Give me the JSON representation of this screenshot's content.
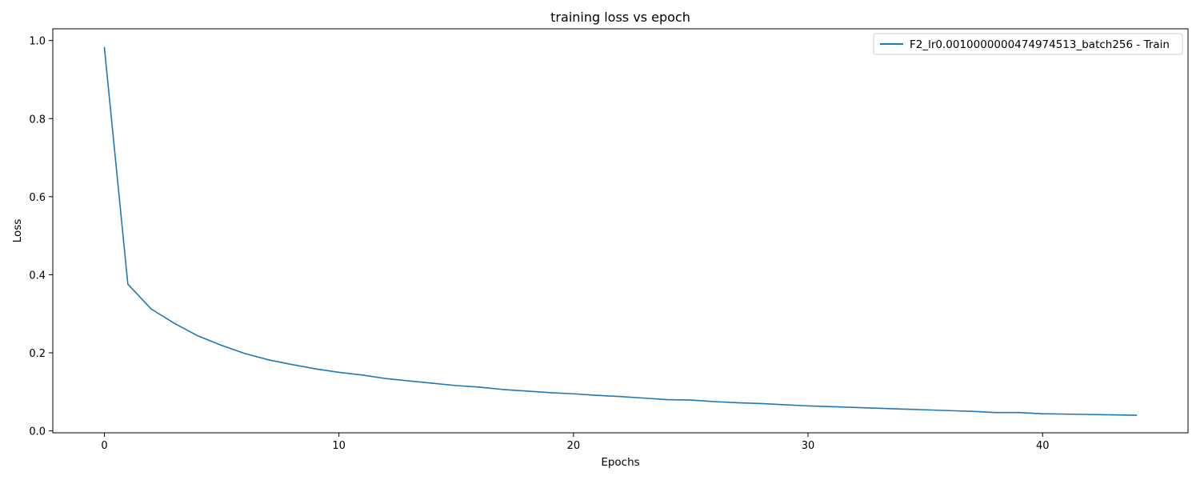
{
  "chart_data": {
    "type": "line",
    "title": "training loss vs epoch",
    "xlabel": "Epochs",
    "ylabel": "Loss",
    "xlim": [
      -2.2,
      46.2
    ],
    "ylim": [
      -0.0049,
      1.0301
    ],
    "xticks": [
      0,
      10,
      20,
      30,
      40
    ],
    "yticks": [
      0.0,
      0.2,
      0.4,
      0.6,
      0.8,
      1.0
    ],
    "ytick_labels": [
      "0.0",
      "0.2",
      "0.4",
      "0.6",
      "0.8",
      "1.0"
    ],
    "grid": false,
    "legend_placement": "top-right",
    "series": [
      {
        "name": "F2_lr0.0010000000474974513_batch256 - Train",
        "color": "#1f77b4",
        "x": [
          0,
          1,
          2,
          3,
          4,
          5,
          6,
          7,
          8,
          9,
          10,
          11,
          12,
          13,
          14,
          15,
          16,
          17,
          18,
          19,
          20,
          21,
          22,
          23,
          24,
          25,
          26,
          27,
          28,
          29,
          30,
          31,
          32,
          33,
          34,
          35,
          36,
          37,
          38,
          39,
          40,
          41,
          42,
          43,
          44
        ],
        "y": [
          0.982,
          0.376,
          0.312,
          0.275,
          0.243,
          0.219,
          0.198,
          0.182,
          0.17,
          0.159,
          0.15,
          0.143,
          0.134,
          0.128,
          0.122,
          0.116,
          0.112,
          0.106,
          0.102,
          0.098,
          0.095,
          0.091,
          0.088,
          0.084,
          0.08,
          0.079,
          0.075,
          0.072,
          0.07,
          0.067,
          0.064,
          0.062,
          0.06,
          0.058,
          0.056,
          0.054,
          0.052,
          0.05,
          0.047,
          0.047,
          0.044,
          0.043,
          0.042,
          0.041,
          0.04
        ]
      }
    ]
  }
}
